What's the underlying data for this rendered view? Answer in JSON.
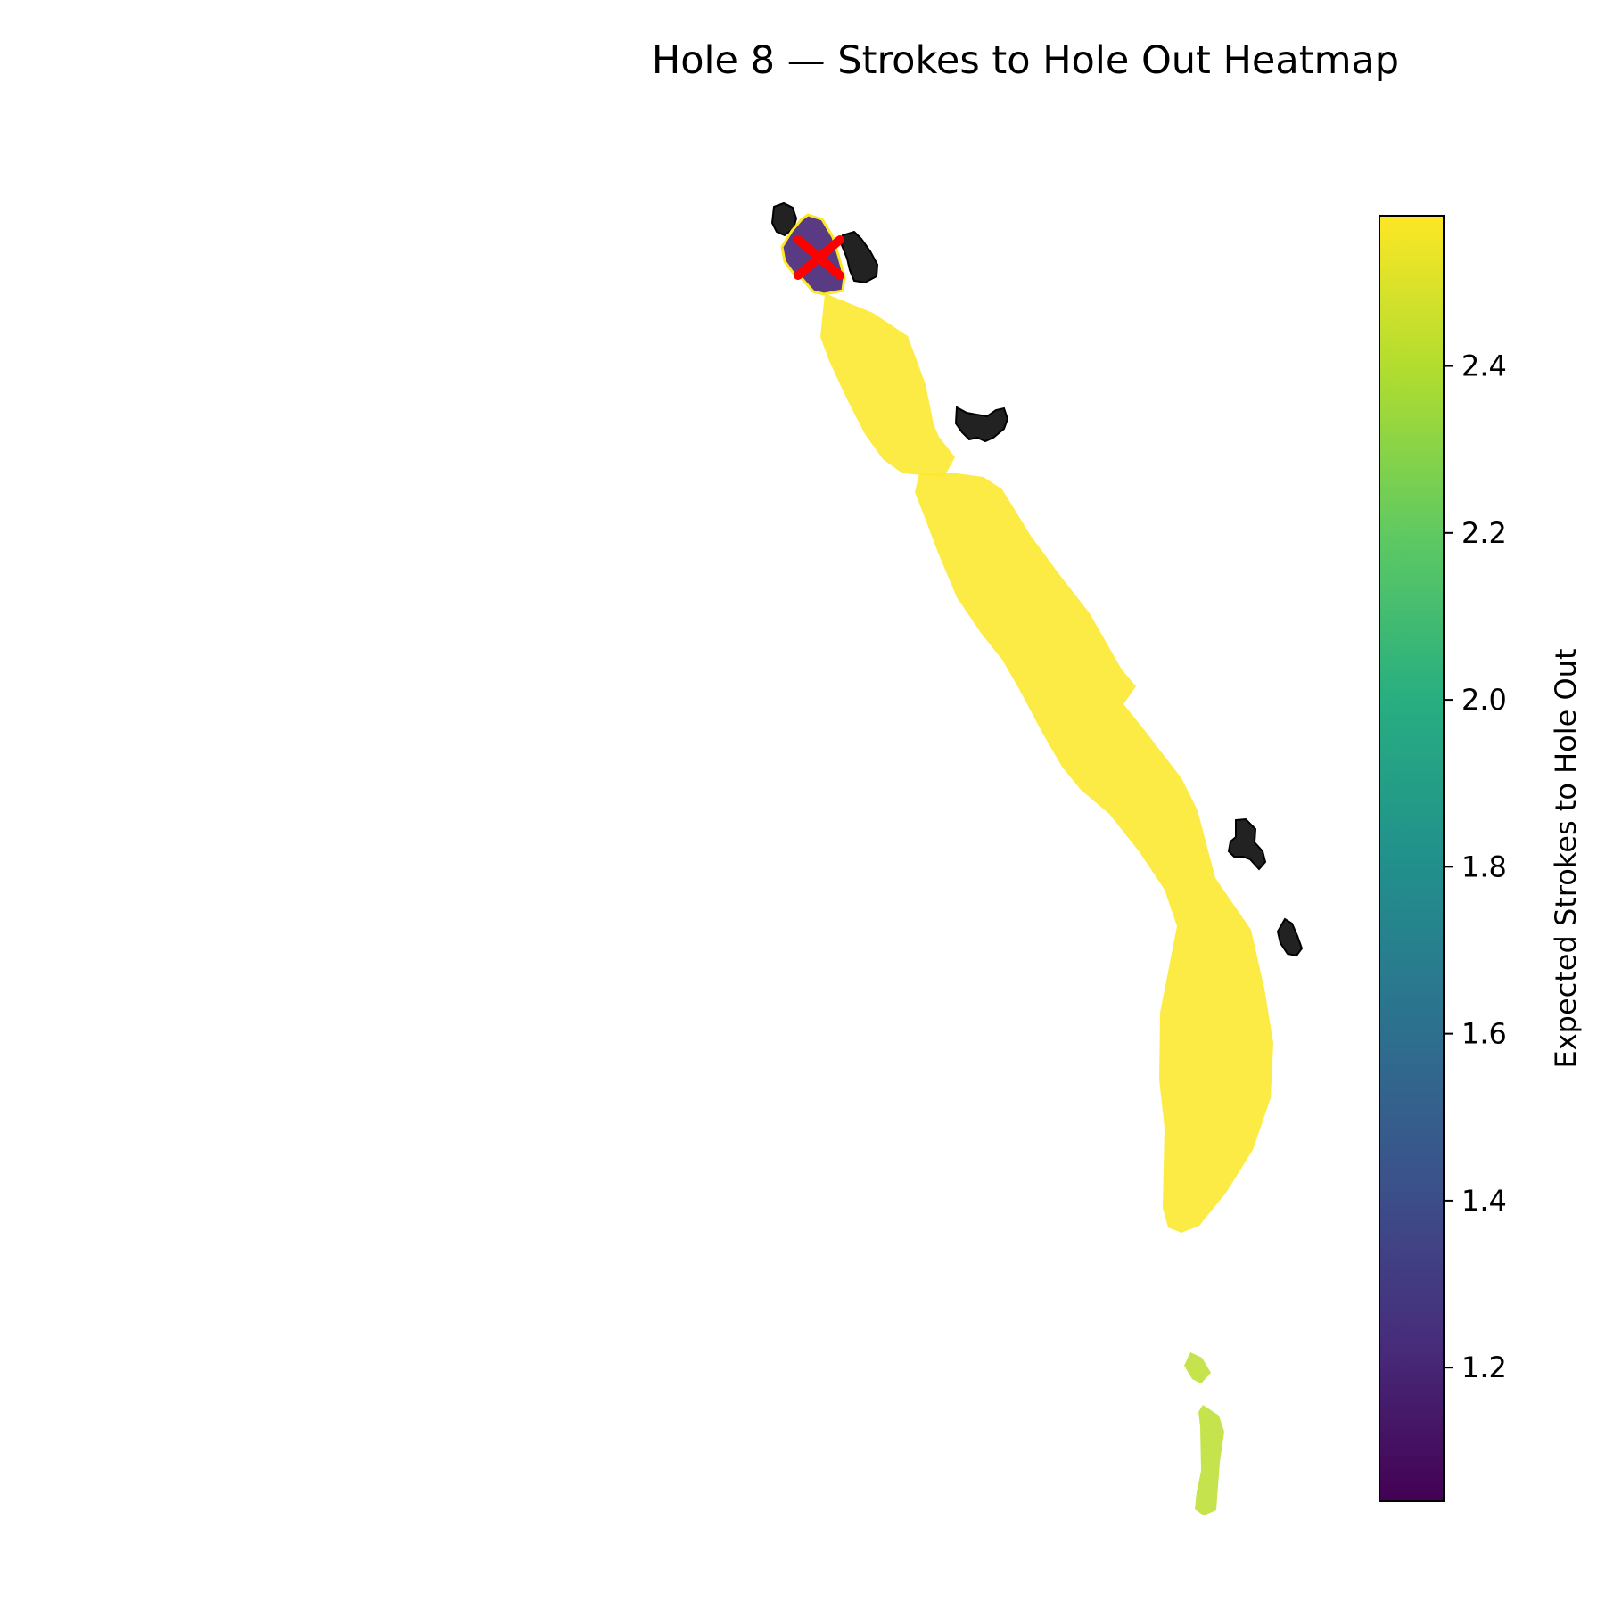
{
  "title": "Hole 8 — Strokes to Hole Out Heatmap",
  "colorbar": {
    "label": "Expected Strokes to Hole Out",
    "colormap": "viridis",
    "range": [
      1.04,
      2.58
    ],
    "ticks": [
      "1.2",
      "1.4",
      "1.6",
      "1.8",
      "2.0",
      "2.2",
      "2.4"
    ],
    "tick_values": [
      1.2,
      1.4,
      1.6,
      1.8,
      2.0,
      2.2,
      2.4
    ]
  },
  "regions": [
    {
      "name": "green",
      "value": 1.2
    },
    {
      "name": "fairway-upper",
      "value": 2.58
    },
    {
      "name": "fairway-lower",
      "value": 2.58
    },
    {
      "name": "tee-box-upper",
      "value": 2.42
    },
    {
      "name": "tee-box-lower",
      "value": 2.42
    }
  ],
  "colors": {
    "bunker": "#222222",
    "pin_marker": "#ff0000",
    "green_outline": "#fde725"
  },
  "markers": [
    {
      "name": "pin",
      "symbol": "x"
    }
  ]
}
